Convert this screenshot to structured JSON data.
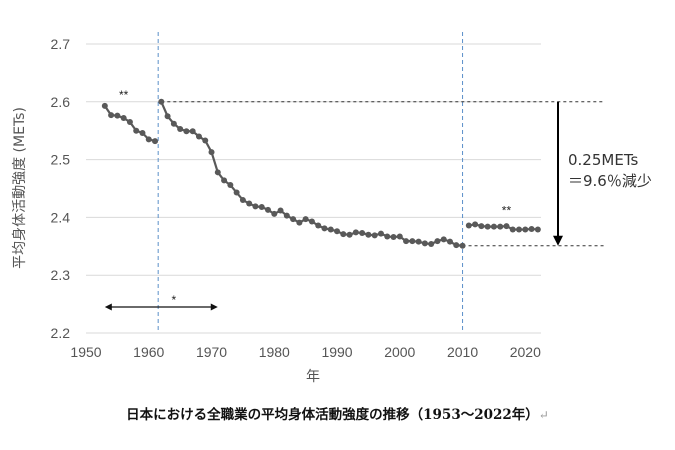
{
  "caption": "日本における全職業の平均身体活動強度の推移（1953～2022年）",
  "caption_mark": "↵",
  "chart_data": {
    "type": "line",
    "xlabel": "年",
    "ylabel": "平均身体活動強度 (METs)",
    "xlim": [
      1950,
      2022
    ],
    "ylim": [
      2.2,
      2.7
    ],
    "x_ticks": [
      "1950",
      "1960",
      "1970",
      "1980",
      "1990",
      "2000",
      "2010",
      "2020"
    ],
    "y_ticks": [
      "2.2",
      "2.3",
      "2.4",
      "2.5",
      "2.6",
      "2.7"
    ],
    "grid": "horizontal",
    "color": "#595959",
    "series": [
      {
        "x": [
          1953,
          1954,
          1955,
          1956,
          1957,
          1958,
          1959,
          1960,
          1961
        ],
        "y": [
          2.593,
          2.577,
          2.576,
          2.572,
          2.565,
          2.55,
          2.546,
          2.535,
          2.532
        ]
      },
      {
        "x": [
          1962,
          1963,
          1964,
          1965,
          1966,
          1967,
          1968,
          1969,
          1970,
          1971,
          1972,
          1973,
          1974,
          1975,
          1976,
          1977,
          1978,
          1979,
          1980,
          1981,
          1982,
          1983,
          1984,
          1985,
          1986,
          1987,
          1988,
          1989,
          1990,
          1991,
          1992,
          1993,
          1994,
          1995,
          1996,
          1997,
          1998,
          1999,
          2000,
          2001,
          2002,
          2003,
          2004,
          2005,
          2006,
          2007,
          2008,
          2009,
          2010
        ],
        "y": [
          2.6,
          2.575,
          2.562,
          2.553,
          2.549,
          2.549,
          2.54,
          2.533,
          2.513,
          2.478,
          2.464,
          2.456,
          2.443,
          2.43,
          2.424,
          2.419,
          2.418,
          2.413,
          2.406,
          2.412,
          2.403,
          2.397,
          2.391,
          2.397,
          2.393,
          2.386,
          2.381,
          2.379,
          2.376,
          2.371,
          2.37,
          2.374,
          2.373,
          2.37,
          2.369,
          2.372,
          2.367,
          2.366,
          2.367,
          2.359,
          2.359,
          2.358,
          2.355,
          2.354,
          2.359,
          2.362,
          2.358,
          2.352,
          2.351
        ]
      },
      {
        "x": [
          2011,
          2012,
          2013,
          2014,
          2015,
          2016,
          2017,
          2018,
          2019,
          2020,
          2021,
          2022
        ],
        "y": [
          2.386,
          2.388,
          2.385,
          2.384,
          2.384,
          2.384,
          2.385,
          2.379,
          2.379,
          2.379,
          2.38,
          2.379
        ]
      }
    ],
    "vertical_lines": [
      1961.5,
      2010
    ],
    "reference_levels": [
      2.6,
      2.351
    ],
    "annotations": [
      {
        "text": "**",
        "x": 1956,
        "y": 2.605
      },
      {
        "text": "*",
        "x": 1964,
        "y": 2.25
      },
      {
        "text": "**",
        "x": 2017,
        "y": 2.405
      }
    ],
    "range_arrow": {
      "x": [
        1953,
        1971
      ],
      "y": 2.245
    },
    "change_arrow": {
      "label_lines": [
        "0.25METs",
        "＝9.6％減少"
      ]
    }
  }
}
